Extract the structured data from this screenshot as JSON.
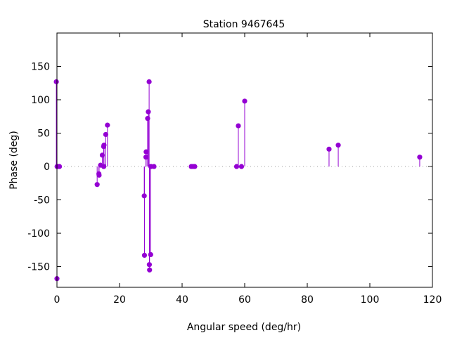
{
  "chart_data": {
    "type": "scatter",
    "style": "impulses-with-points",
    "title": "Station 9467645",
    "xlabel": "Angular speed (deg/hr)",
    "ylabel": "Phase (deg)",
    "xlim": [
      0,
      120
    ],
    "ylim": [
      -181,
      200
    ],
    "xticks": [
      0,
      20,
      40,
      60,
      80,
      100,
      120
    ],
    "yticks": [
      -150,
      -100,
      -50,
      0,
      50,
      100,
      150
    ],
    "grid": false,
    "zero_line": "dotted",
    "color": "#9400d3",
    "points": [
      {
        "x": -0.2,
        "y": 127
      },
      {
        "x": 0.0,
        "y": -168
      },
      {
        "x": 0.04,
        "y": 0
      },
      {
        "x": 0.5,
        "y": 0
      },
      {
        "x": 0.8,
        "y": 0
      },
      {
        "x": 12.85,
        "y": -27
      },
      {
        "x": 13.4,
        "y": -11
      },
      {
        "x": 13.47,
        "y": -13
      },
      {
        "x": 13.94,
        "y": 2
      },
      {
        "x": 14.49,
        "y": 17
      },
      {
        "x": 14.92,
        "y": 30
      },
      {
        "x": 14.96,
        "y": 0
      },
      {
        "x": 15.04,
        "y": 32
      },
      {
        "x": 15.59,
        "y": 48
      },
      {
        "x": 16.14,
        "y": 62
      },
      {
        "x": 27.9,
        "y": -44
      },
      {
        "x": 27.97,
        "y": -133
      },
      {
        "x": 28.44,
        "y": 14
      },
      {
        "x": 28.51,
        "y": 22
      },
      {
        "x": 28.98,
        "y": 72
      },
      {
        "x": 29.2,
        "y": 82
      },
      {
        "x": 29.46,
        "y": 127
      },
      {
        "x": 29.53,
        "y": -147
      },
      {
        "x": 29.6,
        "y": -155
      },
      {
        "x": 29.96,
        "y": -132
      },
      {
        "x": 30.0,
        "y": 0
      },
      {
        "x": 30.08,
        "y": 0
      },
      {
        "x": 31.02,
        "y": 0
      },
      {
        "x": 42.93,
        "y": 0
      },
      {
        "x": 43.48,
        "y": 0
      },
      {
        "x": 44.03,
        "y": 0
      },
      {
        "x": 57.42,
        "y": 0
      },
      {
        "x": 57.97,
        "y": 61
      },
      {
        "x": 58.98,
        "y": 0
      },
      {
        "x": 60.0,
        "y": 98
      },
      {
        "x": 86.96,
        "y": 26
      },
      {
        "x": 89.9,
        "y": 32
      },
      {
        "x": 115.94,
        "y": 14
      }
    ]
  }
}
